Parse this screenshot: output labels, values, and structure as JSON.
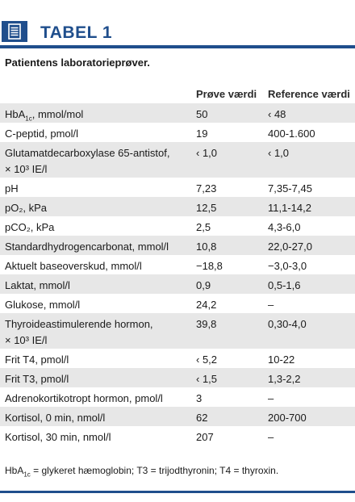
{
  "header": {
    "icon": "document-list-icon",
    "title": "TABEL 1",
    "accent_color": "#1f4e8c"
  },
  "subtitle": "Patientens laboratorieprøver.",
  "table": {
    "columns": [
      "",
      "Prøve  værdi",
      "Reference værdi"
    ],
    "rows": [
      {
        "name": "HbA1c, mmol/mol",
        "value": "50",
        "reference": "‹ 48"
      },
      {
        "name": "C-peptid, pmol/l",
        "value": "19",
        "reference": "400-1.600"
      },
      {
        "name": "Glutamatdecarboxylase 65-antistof,\n× 10³ IE/l",
        "value": "‹ 1,0",
        "reference": "‹ 1,0"
      },
      {
        "name": "pH",
        "value": "7,23",
        "reference": "7,35-7,45"
      },
      {
        "name": "pO₂, kPa",
        "value": "12,5",
        "reference": "11,1-14,2"
      },
      {
        "name": "pCO₂, kPa",
        "value": "2,5",
        "reference": "4,3-6,0"
      },
      {
        "name": "Standardhydrogencarbonat, mmol/l",
        "value": "10,8",
        "reference": "22,0-27,0"
      },
      {
        "name": "Aktuelt baseoverskud, mmol/l",
        "value": "−18,8",
        "reference": "−3,0-3,0"
      },
      {
        "name": "Laktat, mmol/l",
        "value": "0,9",
        "reference": "0,5-1,6"
      },
      {
        "name": "Glukose, mmol/l",
        "value": "24,2",
        "reference": "–"
      },
      {
        "name": "Thyroideastimulerende hormon,\n× 10³ IE/l",
        "value": "39,8",
        "reference": "0,30-4,0"
      },
      {
        "name": "Frit T4, pmol/l",
        "value": "‹ 5,2",
        "reference": "10-22"
      },
      {
        "name": "Frit T3, pmol/l",
        "value": "‹ 1,5",
        "reference": "1,3-2,2"
      },
      {
        "name": "Adrenokortikotropt hormon, pmol/l",
        "value": "3",
        "reference": "–"
      },
      {
        "name": "Kortisol, 0 min, nmol/l",
        "value": "62",
        "reference": "200-700"
      },
      {
        "name": "Kortisol, 30 min, nmol/l",
        "value": "207",
        "reference": "–"
      }
    ]
  },
  "footnote": "HbA1c = glykeret hæmoglobin; T3 = trijodthyronin; T4 = thyroxin."
}
